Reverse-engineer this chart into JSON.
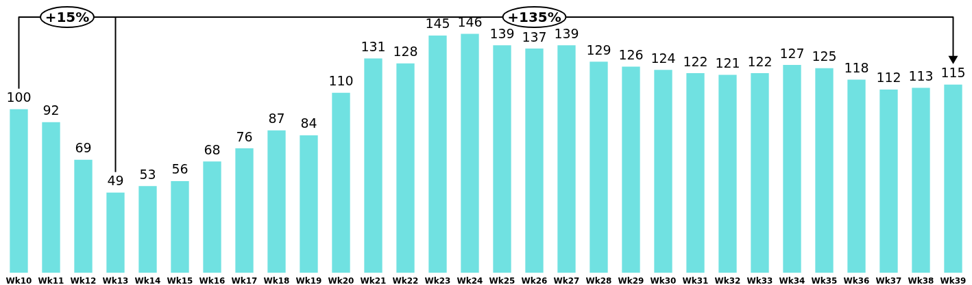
{
  "chart_data": {
    "type": "bar",
    "categories": [
      "Wk10",
      "Wk11",
      "Wk12",
      "Wk13",
      "Wk14",
      "Wk15",
      "Wk16",
      "Wk17",
      "Wk18",
      "Wk19",
      "Wk20",
      "Wk21",
      "Wk22",
      "Wk23",
      "Wk24",
      "Wk25",
      "Wk26",
      "Wk27",
      "Wk28",
      "Wk29",
      "Wk30",
      "Wk31",
      "Wk32",
      "Wk33",
      "Wk34",
      "Wk35",
      "Wk36",
      "Wk37",
      "Wk38",
      "Wk39"
    ],
    "values": [
      100,
      92,
      69,
      49,
      53,
      56,
      68,
      76,
      87,
      84,
      110,
      131,
      128,
      145,
      146,
      139,
      137,
      139,
      129,
      126,
      124,
      122,
      121,
      122,
      127,
      125,
      118,
      112,
      113,
      115
    ],
    "color": "#70e1e1",
    "data_labels": true,
    "grid": false,
    "tick_labels": "x",
    "annotations": [
      "+15%",
      "+135%"
    ]
  }
}
